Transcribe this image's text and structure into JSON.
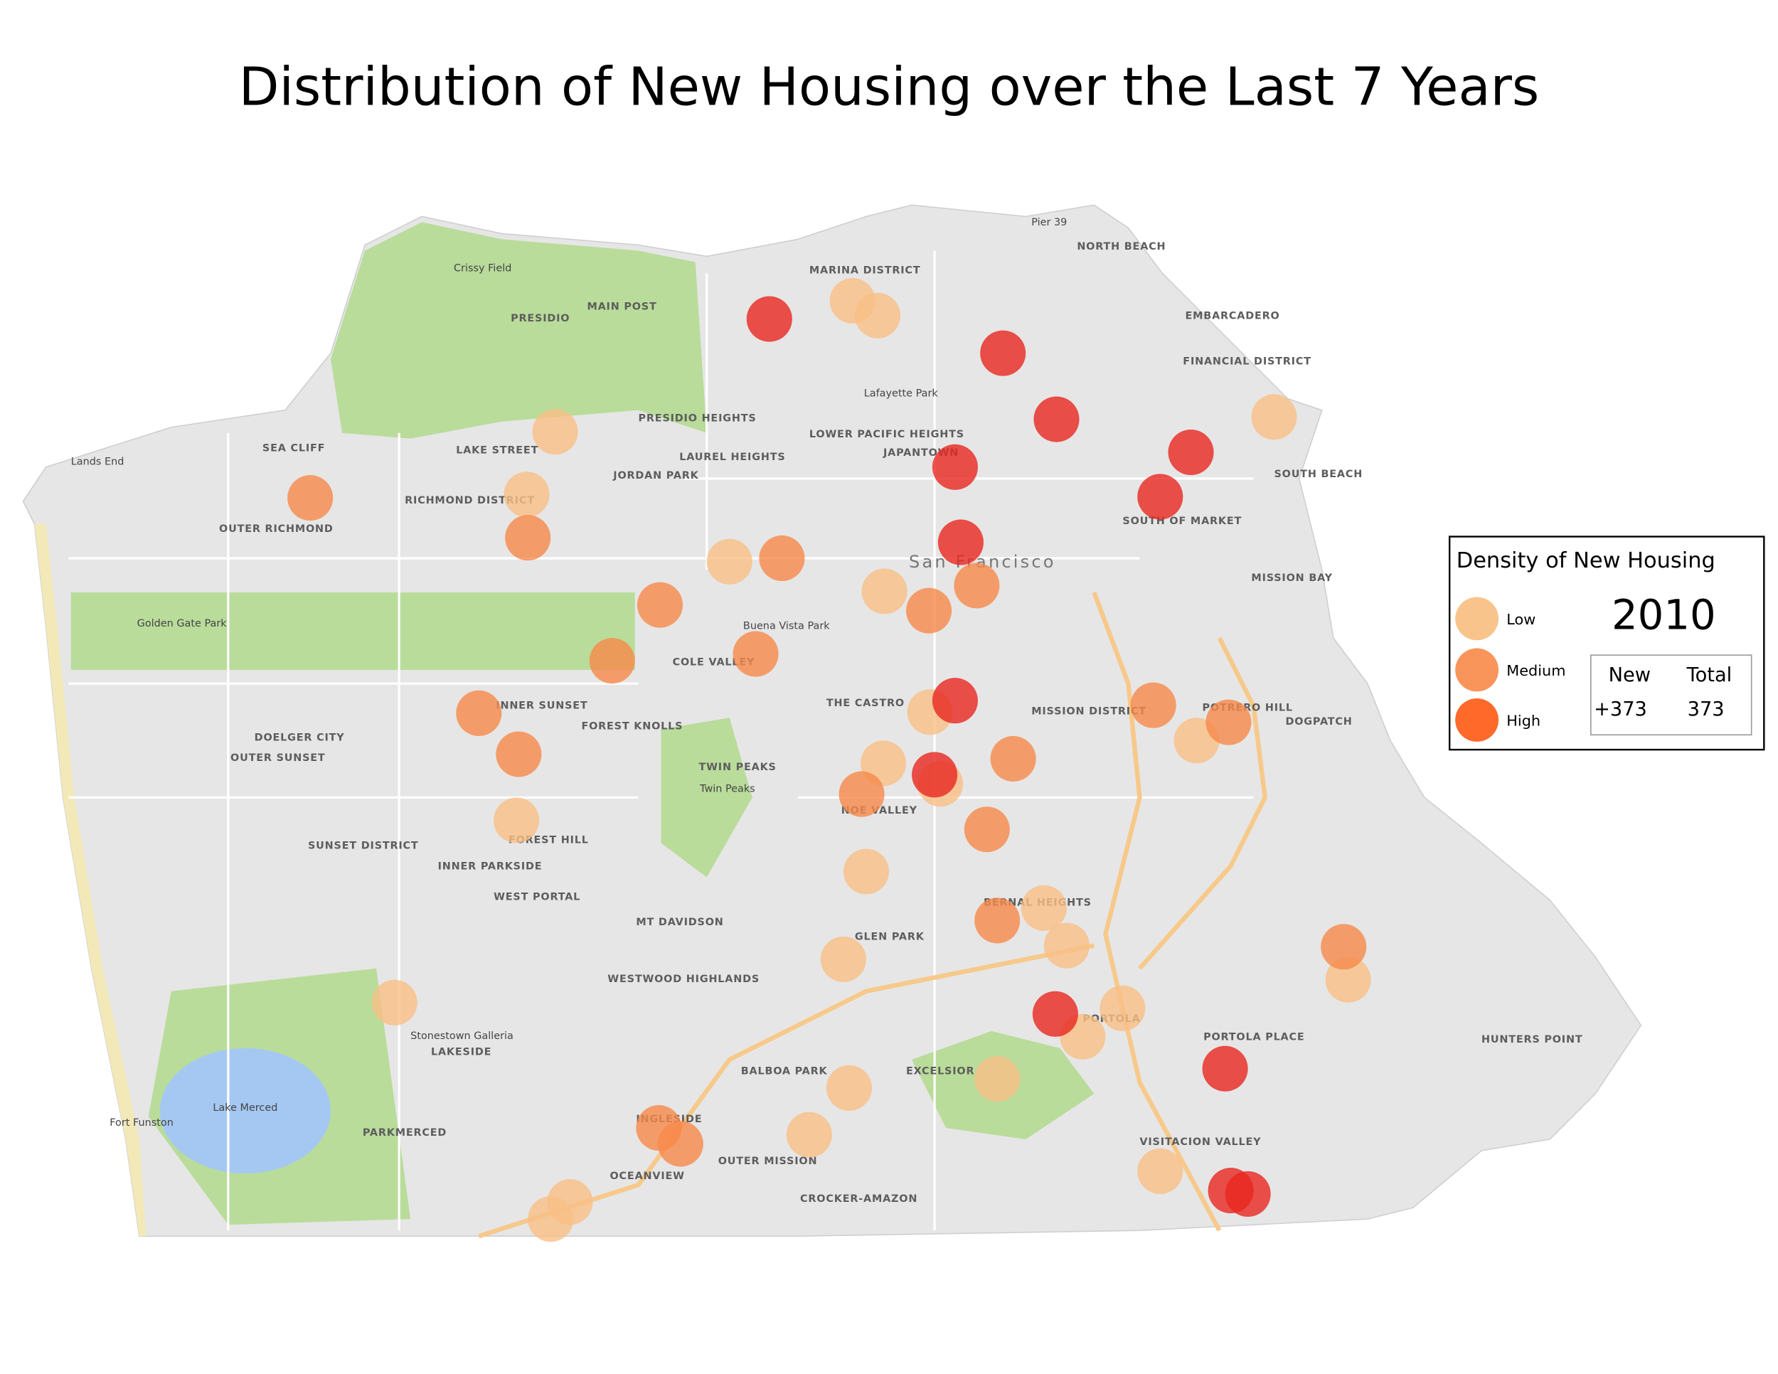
{
  "title": "Distribution of New Housing over the Last 7 Years",
  "legend": {
    "title": "Density of New Housing",
    "levels": [
      "Low",
      "Medium",
      "High"
    ],
    "year": "2010",
    "columns": [
      "New",
      "Total"
    ],
    "values": [
      "+373",
      "373"
    ]
  },
  "map_labels": [
    "MARINA DISTRICT",
    "PRESIDIO",
    "MAIN POST",
    "SEA CLIFF",
    "LAKE STREET",
    "RICHMOND DISTRICT",
    "OUTER RICHMOND",
    "JORDAN PARK",
    "LAUREL HEIGHTS",
    "PRESIDIO HEIGHTS",
    "LOWER PACIFIC HEIGHTS",
    "JAPANTOWN",
    "NORTH BEACH",
    "FINANCIAL DISTRICT",
    "EMBARCADERO",
    "SOUTH BEACH",
    "SOUTH OF MARKET",
    "MISSION BAY",
    "San Francisco",
    "COLE VALLEY",
    "INNER SUNSET",
    "FOREST KNOLLS",
    "THE CASTRO",
    "MISSION DISTRICT",
    "POTRERO HILL",
    "DOGPATCH",
    "OUTER SUNSET",
    "DOELGER CITY",
    "SUNSET DISTRICT",
    "TWIN PEAKS",
    "NOE VALLEY",
    "FOREST HILL",
    "INNER PARKSIDE",
    "WEST PORTAL",
    "MT DAVIDSON",
    "GLEN PARK",
    "BERNAL HEIGHTS",
    "WESTWOOD HIGHLANDS",
    "LAKESIDE",
    "PARKMERCED",
    "INGLESIDE",
    "OCEANVIEW",
    "OUTER MISSION",
    "BALBOA PARK",
    "EXCELSIOR",
    "CROCKER-AMAZON",
    "PORTOLA",
    "PORTOLA PLACE",
    "VISITACION VALLEY",
    "HUNTERS POINT",
    "Lake Merced",
    "Golden Gate Park",
    "Lands End",
    "Fort Funston",
    "Stonestown Galleria",
    "Twin Peaks",
    "Buena Vista Park",
    "Lafayette Park",
    "Crissy Field",
    "Pier 39"
  ]
}
